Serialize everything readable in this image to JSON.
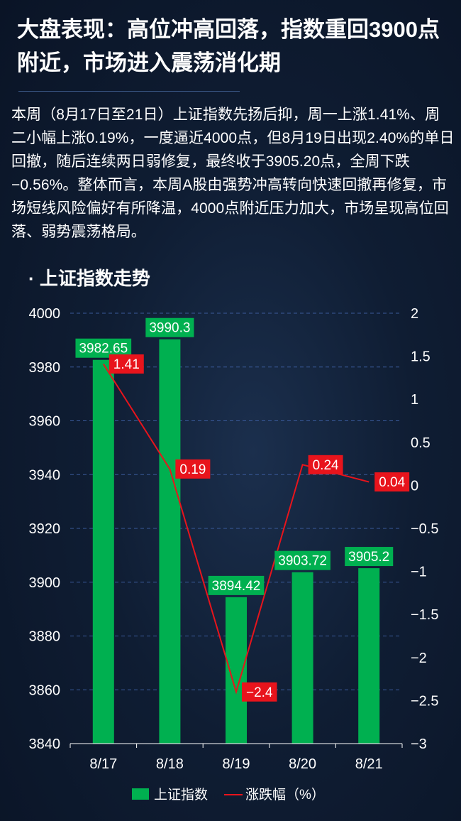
{
  "title": "大盘表现：高位冲高回落，指数重回3900点附近，市场进入震荡消化期",
  "summary": "本周（8月17日至21日）上证指数先扬后抑，周一上涨1.41%、周二小幅上涨0.19%，一度逼近4000点，但8月19日出现2.40%的单日回撤，随后连续两日弱修复，最终收于3905.20点，全周下跌−0.56%。整体而言，本周A股由强势冲高转向快速回撤再修复，市场短线风险偏好有所降温，4000点附近压力加大，市场呈现高位回落、弱势震荡格局。",
  "chart_heading": "· 上证指数走势",
  "colors": {
    "bar": "#00b050",
    "line": "#e8141c",
    "label_bg_pct": "#e8141c",
    "label_bg_bar": "#00b050",
    "grid": "#3a5a9a",
    "axis": "#ffffff"
  },
  "chart_data": {
    "type": "bar",
    "categories": [
      "8/17",
      "8/18",
      "8/19",
      "8/20",
      "8/21"
    ],
    "series": [
      {
        "name": "上证指数",
        "type": "bar",
        "axis": "left",
        "values": [
          3982.65,
          3990.3,
          3894.42,
          3903.72,
          3905.2
        ]
      },
      {
        "name": "涨跌幅（%）",
        "type": "line",
        "axis": "right",
        "values": [
          1.41,
          0.19,
          -2.4,
          0.24,
          0.04
        ]
      }
    ],
    "bar_labels": [
      "3982.65",
      "3990.3",
      "3894.42",
      "3903.72",
      "3905.2"
    ],
    "line_labels": [
      "1.41",
      "0.19",
      "-2.4",
      "0.24",
      "0.04"
    ],
    "y_left": {
      "min": 3840,
      "max": 4000,
      "ticks": [
        "3840",
        "3860",
        "3880",
        "3900",
        "3920",
        "3940",
        "3960",
        "3980",
        "4000"
      ]
    },
    "y_right": {
      "min": -3,
      "max": 2,
      "ticks": [
        "-3",
        "-2.5",
        "-2",
        "-1.5",
        "-1",
        "-0.5",
        "0",
        "0.5",
        "1",
        "1.5",
        "2"
      ]
    },
    "grid": true,
    "legend_position": "bottom",
    "legend": [
      "上证指数",
      "涨跌幅（%）"
    ]
  }
}
